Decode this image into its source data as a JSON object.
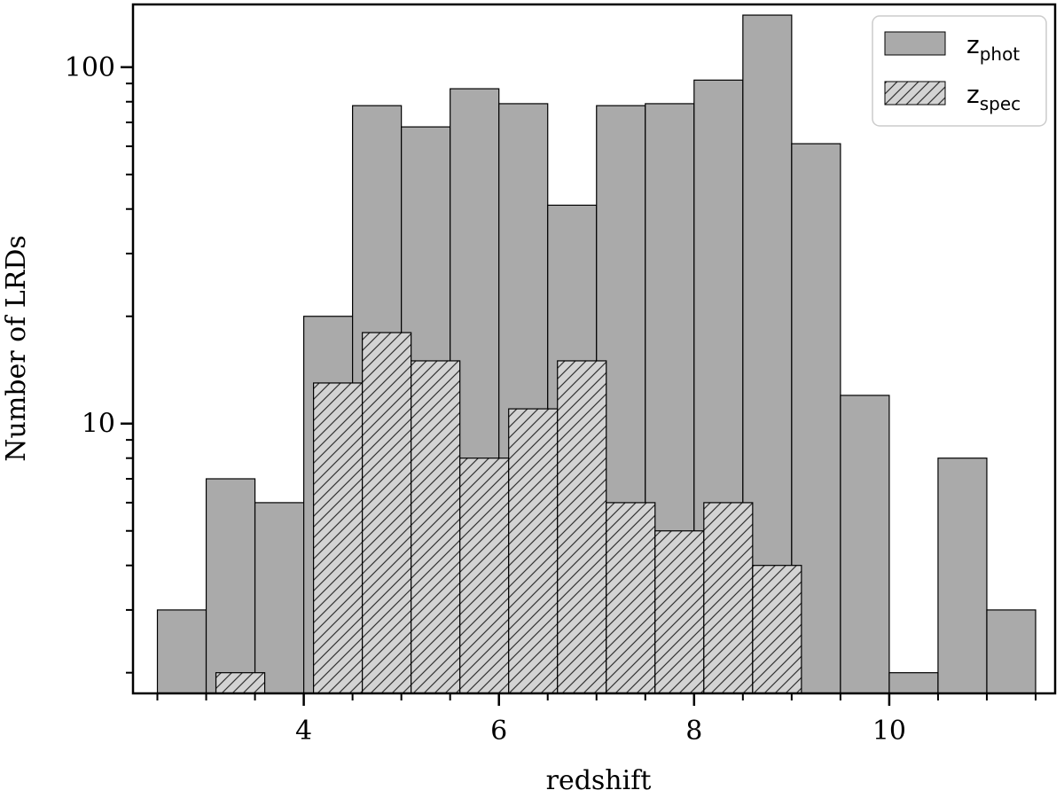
{
  "chart_data": {
    "type": "bar",
    "xlabel": "redshift",
    "ylabel": "Number of LRDs",
    "yscale": "log",
    "xlim": [
      2.25,
      11.7
    ],
    "ylim": [
      1.75,
      150
    ],
    "x_major_ticks": [
      4,
      6,
      8,
      10
    ],
    "x_minor_ticks": [
      2.5,
      3.0,
      3.5,
      4.5,
      5.0,
      5.5,
      6.5,
      7.0,
      7.5,
      8.5,
      9.0,
      9.5,
      10.5,
      11.0,
      11.5
    ],
    "y_major_ticks": [
      10,
      100
    ],
    "y_minor_ticks": [
      2,
      3,
      4,
      5,
      6,
      7,
      8,
      9,
      20,
      30,
      40,
      50,
      60,
      70,
      80,
      90
    ],
    "grid": false,
    "legend_position": "top-right",
    "series": [
      {
        "name": "z",
        "name_sub": "phot",
        "style": "solid",
        "color": "#aaaaaa",
        "bins": [
          {
            "x0": 2.5,
            "x1": 3.0,
            "value": 3
          },
          {
            "x0": 3.0,
            "x1": 3.5,
            "value": 7
          },
          {
            "x0": 3.5,
            "x1": 4.0,
            "value": 6
          },
          {
            "x0": 4.0,
            "x1": 4.5,
            "value": 20
          },
          {
            "x0": 4.5,
            "x1": 5.0,
            "value": 78
          },
          {
            "x0": 5.0,
            "x1": 5.5,
            "value": 68
          },
          {
            "x0": 5.5,
            "x1": 6.0,
            "value": 87
          },
          {
            "x0": 6.0,
            "x1": 6.5,
            "value": 79
          },
          {
            "x0": 6.5,
            "x1": 7.0,
            "value": 41
          },
          {
            "x0": 7.0,
            "x1": 7.5,
            "value": 78
          },
          {
            "x0": 7.5,
            "x1": 8.0,
            "value": 79
          },
          {
            "x0": 8.0,
            "x1": 8.5,
            "value": 92
          },
          {
            "x0": 8.5,
            "x1": 9.0,
            "value": 140
          },
          {
            "x0": 9.0,
            "x1": 9.5,
            "value": 61
          },
          {
            "x0": 9.5,
            "x1": 10.0,
            "value": 12
          },
          {
            "x0": 10.0,
            "x1": 10.5,
            "value": 2
          },
          {
            "x0": 10.5,
            "x1": 11.0,
            "value": 8
          },
          {
            "x0": 11.0,
            "x1": 11.5,
            "value": 3
          }
        ]
      },
      {
        "name": "z",
        "name_sub": "spec",
        "style": "hatched",
        "color": "#d3d3d3",
        "bins": [
          {
            "x0": 3.1,
            "x1": 3.6,
            "value": 2
          },
          {
            "x0": 4.1,
            "x1": 4.6,
            "value": 13
          },
          {
            "x0": 4.6,
            "x1": 5.1,
            "value": 18
          },
          {
            "x0": 5.1,
            "x1": 5.6,
            "value": 15
          },
          {
            "x0": 5.6,
            "x1": 6.1,
            "value": 8
          },
          {
            "x0": 6.1,
            "x1": 6.6,
            "value": 11
          },
          {
            "x0": 6.6,
            "x1": 7.1,
            "value": 15
          },
          {
            "x0": 7.1,
            "x1": 7.6,
            "value": 6
          },
          {
            "x0": 7.6,
            "x1": 8.1,
            "value": 5
          },
          {
            "x0": 8.1,
            "x1": 8.6,
            "value": 6
          },
          {
            "x0": 8.6,
            "x1": 9.1,
            "value": 4
          }
        ]
      }
    ]
  }
}
